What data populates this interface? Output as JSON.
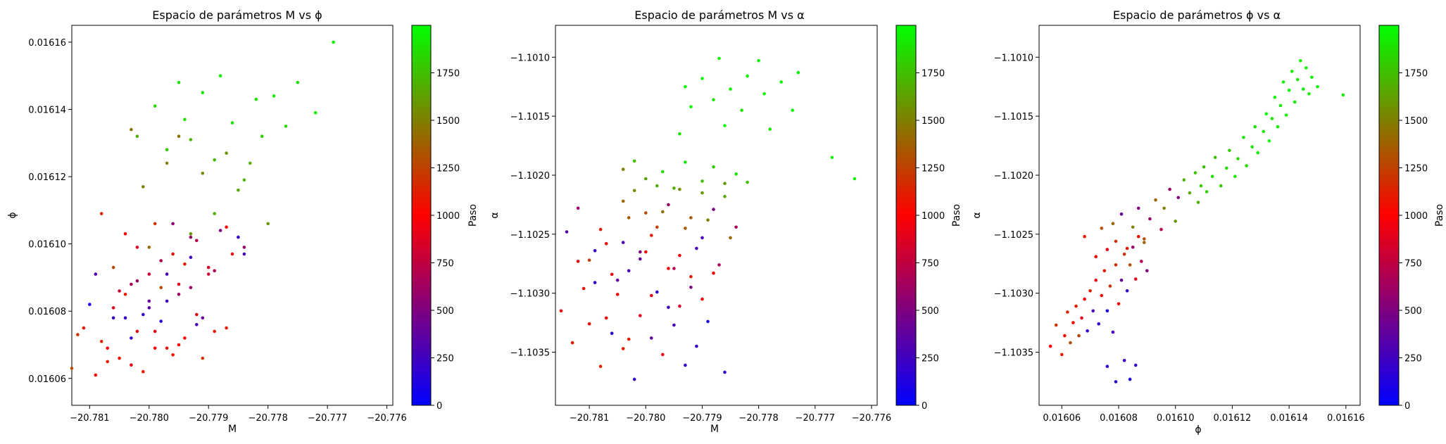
{
  "chart_data": [
    {
      "type": "scatter",
      "title": "Espacio de parámetros M vs ϕ",
      "xlabel": "M",
      "ylabel": "ϕ",
      "xlim": [
        -20.7813,
        -20.7759
      ],
      "ylim": [
        0.016052,
        0.016165
      ],
      "xticks": [
        -20.781,
        -20.78,
        -20.779,
        -20.778,
        -20.777,
        -20.776
      ],
      "xtick_labels": [
        "−20.781",
        "−20.780",
        "−20.779",
        "−20.778",
        "−20.777",
        "−20.776"
      ],
      "yticks": [
        0.01606,
        0.01608,
        0.0161,
        0.01612,
        0.01614,
        0.01616
      ],
      "ytick_labels": [
        "0.01606",
        "0.01608",
        "0.01610",
        "0.01612",
        "0.01614",
        "0.01616"
      ],
      "x": [
        -20.7813,
        -20.7811,
        -20.7809,
        -20.7808,
        -20.7806,
        -20.7805,
        -20.7804,
        -20.7803,
        -20.7802,
        -20.7801,
        -20.78,
        -20.7799,
        -20.7798,
        -20.7797,
        -20.7796,
        -20.7795,
        -20.7794,
        -20.7793,
        -20.7792,
        -20.7791,
        -20.7789,
        -20.7812,
        -20.781,
        -20.7807,
        -20.7806,
        -20.7804,
        -20.7803,
        -20.7801,
        -20.78,
        -20.7799,
        -20.7797,
        -20.7796,
        -20.7795,
        -20.7793,
        -20.7792,
        -20.779,
        -20.7787,
        -20.7785,
        -20.7809,
        -20.7807,
        -20.7805,
        -20.7803,
        -20.7802,
        -20.78,
        -20.7798,
        -20.7797,
        -20.7795,
        -20.7793,
        -20.7791,
        -20.7789,
        -20.7787,
        -20.7784,
        -20.7808,
        -20.7806,
        -20.7804,
        -20.7802,
        -20.78,
        -20.7798,
        -20.7796,
        -20.7794,
        -20.7792,
        -20.779,
        -20.7788,
        -20.7786,
        -20.7784,
        -20.7803,
        -20.7801,
        -20.7799,
        -20.7797,
        -20.7795,
        -20.7793,
        -20.7791,
        -20.7789,
        -20.7787,
        -20.7785,
        -20.7783,
        -20.778,
        -20.7802,
        -20.7799,
        -20.7797,
        -20.7795,
        -20.7794,
        -20.7793,
        -20.7791,
        -20.7789,
        -20.7788,
        -20.7786,
        -20.7784,
        -20.7782,
        -20.7781,
        -20.7779,
        -20.7777,
        -20.7775,
        -20.7772,
        -20.7769
      ],
      "y": [
        0.016063,
        0.016075,
        0.016061,
        0.016071,
        0.016081,
        0.016066,
        0.016078,
        0.016088,
        0.016074,
        0.016062,
        0.016083,
        0.016069,
        0.016077,
        0.016091,
        0.016067,
        0.016085,
        0.016072,
        0.016096,
        0.016079,
        0.016066,
        0.016074,
        0.016073,
        0.016082,
        0.016069,
        0.016078,
        0.016085,
        0.016064,
        0.016079,
        0.016091,
        0.016074,
        0.016083,
        0.016097,
        0.01607,
        0.016087,
        0.016076,
        0.016093,
        0.016075,
        0.016102,
        0.016091,
        0.016065,
        0.016086,
        0.016072,
        0.016099,
        0.016081,
        0.016095,
        0.016069,
        0.016088,
        0.016102,
        0.016078,
        0.016092,
        0.016105,
        0.016097,
        0.016109,
        0.016093,
        0.016103,
        0.016089,
        0.016099,
        0.016087,
        0.016106,
        0.016094,
        0.016101,
        0.016091,
        0.016104,
        0.016097,
        0.016099,
        0.016134,
        0.016117,
        0.016106,
        0.016124,
        0.016132,
        0.016103,
        0.016121,
        0.016109,
        0.016127,
        0.016116,
        0.016124,
        0.016106,
        0.016132,
        0.016141,
        0.016128,
        0.016148,
        0.016137,
        0.016131,
        0.016145,
        0.016125,
        0.01615,
        0.016136,
        0.016119,
        0.016143,
        0.016132,
        0.016144,
        0.016135,
        0.016148,
        0.016139,
        0.01616
      ],
      "c": [
        1300,
        1100,
        1000,
        1150,
        900,
        1050,
        200,
        700,
        950,
        1100,
        400,
        1000,
        150,
        300,
        1050,
        600,
        1000,
        250,
        900,
        1200,
        1100,
        1200,
        100,
        1000,
        200,
        1100,
        950,
        200,
        800,
        900,
        250,
        1050,
        1000,
        600,
        300,
        850,
        1100,
        200,
        350,
        1100,
        800,
        200,
        900,
        350,
        700,
        1050,
        900,
        600,
        400,
        700,
        1000,
        250,
        1150,
        1300,
        1000,
        600,
        1400,
        1300,
        550,
        1100,
        700,
        800,
        500,
        1050,
        600,
        1450,
        1500,
        1200,
        1500,
        1450,
        1600,
        1550,
        1700,
        1600,
        1650,
        1700,
        1600,
        1700,
        1850,
        1800,
        1900,
        1850,
        1700,
        1900,
        1750,
        1950,
        1900,
        1700,
        1900,
        1800,
        1900,
        1850,
        1900,
        1950,
        1950
      ],
      "colorbar": {
        "label": "Paso",
        "min": 0,
        "max": 2000,
        "ticks": [
          0,
          250,
          500,
          750,
          1000,
          1250,
          1500,
          1750
        ]
      }
    },
    {
      "type": "scatter",
      "title": "Espacio de parámetros M vs α",
      "xlabel": "M",
      "ylabel": "α",
      "xlim": [
        -20.7816,
        -20.7759
      ],
      "ylim": [
        -1.10395,
        -1.10073
      ],
      "xticks": [
        -20.781,
        -20.78,
        -20.779,
        -20.778,
        -20.777,
        -20.776
      ],
      "xtick_labels": [
        "−20.781",
        "−20.780",
        "−20.779",
        "−20.778",
        "−20.777",
        "−20.776"
      ],
      "yticks": [
        -1.1035,
        -1.103,
        -1.1025,
        -1.102,
        -1.1015,
        -1.101
      ],
      "ytick_labels": [
        "−1.1035",
        "−1.1030",
        "−1.1025",
        "−1.1020",
        "−1.1015",
        "−1.1010"
      ],
      "x": [
        -20.7815,
        -20.7813,
        -20.7812,
        -20.781,
        -20.7809,
        -20.7808,
        -20.7807,
        -20.7806,
        -20.7805,
        -20.7804,
        -20.7803,
        -20.7802,
        -20.7801,
        -20.78,
        -20.7799,
        -20.7798,
        -20.7797,
        -20.7796,
        -20.7795,
        -20.7794,
        -20.7793,
        -20.7792,
        -20.7791,
        -20.779,
        -20.7789,
        -20.7814,
        -20.7811,
        -20.7809,
        -20.7807,
        -20.7806,
        -20.7804,
        -20.7803,
        -20.7801,
        -20.7799,
        -20.7798,
        -20.7796,
        -20.7794,
        -20.7792,
        -20.779,
        -20.7788,
        -20.7786,
        -20.7812,
        -20.781,
        -20.7808,
        -20.7805,
        -20.7803,
        -20.7801,
        -20.7799,
        -20.7797,
        -20.7795,
        -20.7793,
        -20.7791,
        -20.7789,
        -20.7787,
        -20.7785,
        -20.7804,
        -20.7802,
        -20.78,
        -20.7798,
        -20.7796,
        -20.7794,
        -20.7792,
        -20.779,
        -20.7788,
        -20.7786,
        -20.7784,
        -20.7804,
        -20.7802,
        -20.78,
        -20.7797,
        -20.7795,
        -20.7793,
        -20.779,
        -20.7788,
        -20.7786,
        -20.7784,
        -20.7782,
        -20.7794,
        -20.7793,
        -20.7792,
        -20.779,
        -20.7788,
        -20.7787,
        -20.7786,
        -20.7785,
        -20.7783,
        -20.7782,
        -20.778,
        -20.7779,
        -20.7778,
        -20.7776,
        -20.7773,
        -20.7767,
        -20.7763,
        -20.7774
      ],
      "y": [
        -1.10315,
        -1.10342,
        -1.10273,
        -1.10326,
        -1.10291,
        -1.10362,
        -1.10258,
        -1.10334,
        -1.10301,
        -1.10347,
        -1.10281,
        -1.10373,
        -1.10319,
        -1.10265,
        -1.10338,
        -1.10299,
        -1.10352,
        -1.10279,
        -1.10327,
        -1.10311,
        -1.10361,
        -1.10286,
        -1.10345,
        -1.10305,
        -1.10324,
        -1.10248,
        -1.10296,
        -1.10264,
        -1.10321,
        -1.10284,
        -1.10257,
        -1.10339,
        -1.10271,
        -1.10302,
        -1.10244,
        -1.10312,
        -1.10268,
        -1.10295,
        -1.10253,
        -1.10283,
        -1.10367,
        -1.10228,
        -1.10272,
        -1.10246,
        -1.10289,
        -1.10236,
        -1.10265,
        -1.10251,
        -1.10231,
        -1.10279,
        -1.10245,
        -1.10262,
        -1.10238,
        -1.10276,
        -1.10253,
        -1.10222,
        -1.10213,
        -1.10232,
        -1.10209,
        -1.10225,
        -1.10212,
        -1.10236,
        -1.10215,
        -1.10229,
        -1.10207,
        -1.10244,
        -1.10195,
        -1.10188,
        -1.10203,
        -1.10197,
        -1.10211,
        -1.10189,
        -1.10205,
        -1.10193,
        -1.10218,
        -1.10199,
        -1.10206,
        -1.10165,
        -1.10125,
        -1.10142,
        -1.10118,
        -1.10136,
        -1.10101,
        -1.10158,
        -1.10127,
        -1.10145,
        -1.10116,
        -1.10103,
        -1.10131,
        -1.10161,
        -1.10121,
        -1.10113,
        -1.10185,
        -1.10203,
        -1.10145
      ],
      "c": [
        1000,
        1100,
        950,
        1000,
        200,
        1150,
        1050,
        150,
        1000,
        1100,
        300,
        200,
        900,
        1050,
        400,
        200,
        900,
        1000,
        300,
        850,
        200,
        1100,
        200,
        1000,
        100,
        350,
        1050,
        200,
        1000,
        950,
        300,
        1100,
        400,
        900,
        1250,
        250,
        1000,
        500,
        300,
        950,
        200,
        600,
        1250,
        1100,
        400,
        1350,
        500,
        1100,
        1450,
        700,
        1350,
        300,
        1500,
        650,
        1400,
        1400,
        1550,
        1300,
        1650,
        600,
        1550,
        1350,
        1600,
        500,
        1600,
        650,
        1500,
        1750,
        1650,
        1850,
        1700,
        1900,
        1750,
        1800,
        1650,
        1900,
        1750,
        1900,
        1950,
        1950,
        1950,
        1900,
        1950,
        1950,
        1950,
        1900,
        1950,
        1950,
        1950,
        1900,
        1950,
        1950,
        1950,
        1950,
        1950
      ],
      "colorbar": {
        "label": "Paso",
        "min": 0,
        "max": 2000,
        "ticks": [
          0,
          250,
          500,
          750,
          1000,
          1250,
          1500,
          1750
        ]
      }
    },
    {
      "type": "scatter",
      "title": "Espacio de parámetros ϕ vs α",
      "xlabel": "ϕ",
      "ylabel": "α",
      "xlim": [
        0.016052,
        0.016165
      ],
      "ylim": [
        -1.10395,
        -1.10073
      ],
      "xticks": [
        0.01606,
        0.01608,
        0.0161,
        0.01612,
        0.01614,
        0.01616
      ],
      "xtick_labels": [
        "0.01606",
        "0.01608",
        "0.01610",
        "0.01612",
        "0.01614",
        "0.01616"
      ],
      "yticks": [
        -1.1035,
        -1.103,
        -1.1025,
        -1.102,
        -1.1015,
        -1.101
      ],
      "ytick_labels": [
        "−1.1035",
        "−1.1030",
        "−1.1025",
        "−1.1020",
        "−1.1015",
        "−1.1010"
      ],
      "x": [
        0.016056,
        0.016058,
        0.01606,
        0.016061,
        0.016062,
        0.016063,
        0.016064,
        0.016065,
        0.016066,
        0.016067,
        0.016068,
        0.016069,
        0.01607,
        0.016071,
        0.016072,
        0.016073,
        0.016074,
        0.016075,
        0.016076,
        0.016077,
        0.016078,
        0.016079,
        0.01608,
        0.016081,
        0.016082,
        0.016083,
        0.016084,
        0.016085,
        0.016086,
        0.016087,
        0.016088,
        0.016089,
        0.01609,
        0.016068,
        0.016072,
        0.016074,
        0.016076,
        0.016078,
        0.016079,
        0.016081,
        0.016083,
        0.016085,
        0.016087,
        0.016089,
        0.016091,
        0.016093,
        0.016095,
        0.016096,
        0.016098,
        0.0161,
        0.016101,
        0.016103,
        0.016105,
        0.016107,
        0.016108,
        0.016109,
        0.01611,
        0.016111,
        0.016113,
        0.016114,
        0.016116,
        0.016118,
        0.016119,
        0.016121,
        0.016122,
        0.016124,
        0.016125,
        0.016127,
        0.016128,
        0.016129,
        0.016131,
        0.016132,
        0.016133,
        0.016134,
        0.016135,
        0.016136,
        0.016137,
        0.016138,
        0.016139,
        0.01614,
        0.016141,
        0.016142,
        0.016143,
        0.016144,
        0.016145,
        0.016146,
        0.016147,
        0.016148,
        0.01615,
        0.016159,
        0.016076,
        0.016079,
        0.016082,
        0.016084,
        0.016086
      ],
      "y": [
        -1.10345,
        -1.10327,
        -1.10352,
        -1.10336,
        -1.10316,
        -1.10342,
        -1.10325,
        -1.10311,
        -1.10336,
        -1.10321,
        -1.10305,
        -1.10332,
        -1.10298,
        -1.10315,
        -1.10289,
        -1.10326,
        -1.10302,
        -1.10281,
        -1.10315,
        -1.10294,
        -1.10333,
        -1.10276,
        -1.10309,
        -1.10289,
        -1.10267,
        -1.10298,
        -1.10276,
        -1.10261,
        -1.10288,
        -1.10252,
        -1.10273,
        -1.10257,
        -1.10281,
        -1.10252,
        -1.10269,
        -1.10245,
        -1.10263,
        -1.10241,
        -1.10256,
        -1.10233,
        -1.10262,
        -1.10244,
        -1.10228,
        -1.10254,
        -1.10237,
        -1.10221,
        -1.10246,
        -1.10228,
        -1.10212,
        -1.10239,
        -1.10219,
        -1.10204,
        -1.10215,
        -1.10198,
        -1.10223,
        -1.10209,
        -1.10193,
        -1.10214,
        -1.10201,
        -1.10185,
        -1.10209,
        -1.10194,
        -1.10179,
        -1.10201,
        -1.10186,
        -1.10168,
        -1.10192,
        -1.10176,
        -1.10159,
        -1.10181,
        -1.10163,
        -1.10148,
        -1.10171,
        -1.10152,
        -1.10134,
        -1.10159,
        -1.10141,
        -1.10121,
        -1.10149,
        -1.10128,
        -1.10112,
        -1.10138,
        -1.10119,
        -1.10103,
        -1.10127,
        -1.10109,
        -1.10131,
        -1.10117,
        -1.10125,
        -1.10132,
        -1.10362,
        -1.10375,
        -1.10357,
        -1.10373,
        -1.10361
      ],
      "c": [
        1000,
        1200,
        1100,
        1000,
        1150,
        1300,
        1000,
        1100,
        1250,
        900,
        1000,
        200,
        1100,
        300,
        950,
        200,
        1050,
        1100,
        100,
        1200,
        300,
        1150,
        1000,
        400,
        1200,
        200,
        1300,
        600,
        900,
        1000,
        700,
        1400,
        500,
        1100,
        1000,
        1300,
        900,
        1400,
        1200,
        400,
        1100,
        1500,
        500,
        1300,
        600,
        1400,
        700,
        1500,
        600,
        1600,
        500,
        1700,
        1650,
        1750,
        1700,
        1800,
        1750,
        1800,
        1850,
        1750,
        1800,
        1850,
        1800,
        1900,
        1850,
        1900,
        1850,
        1900,
        1900,
        1950,
        1900,
        1950,
        1950,
        1900,
        1950,
        1950,
        1950,
        1950,
        1950,
        1950,
        1950,
        1950,
        1950,
        1950,
        1950,
        1950,
        1950,
        1950,
        1950,
        1950,
        200,
        150,
        250,
        100,
        200
      ],
      "colorbar": {
        "label": "Paso",
        "min": 0,
        "max": 2000,
        "ticks": [
          0,
          250,
          500,
          750,
          1000,
          1250,
          1500,
          1750
        ]
      }
    }
  ]
}
